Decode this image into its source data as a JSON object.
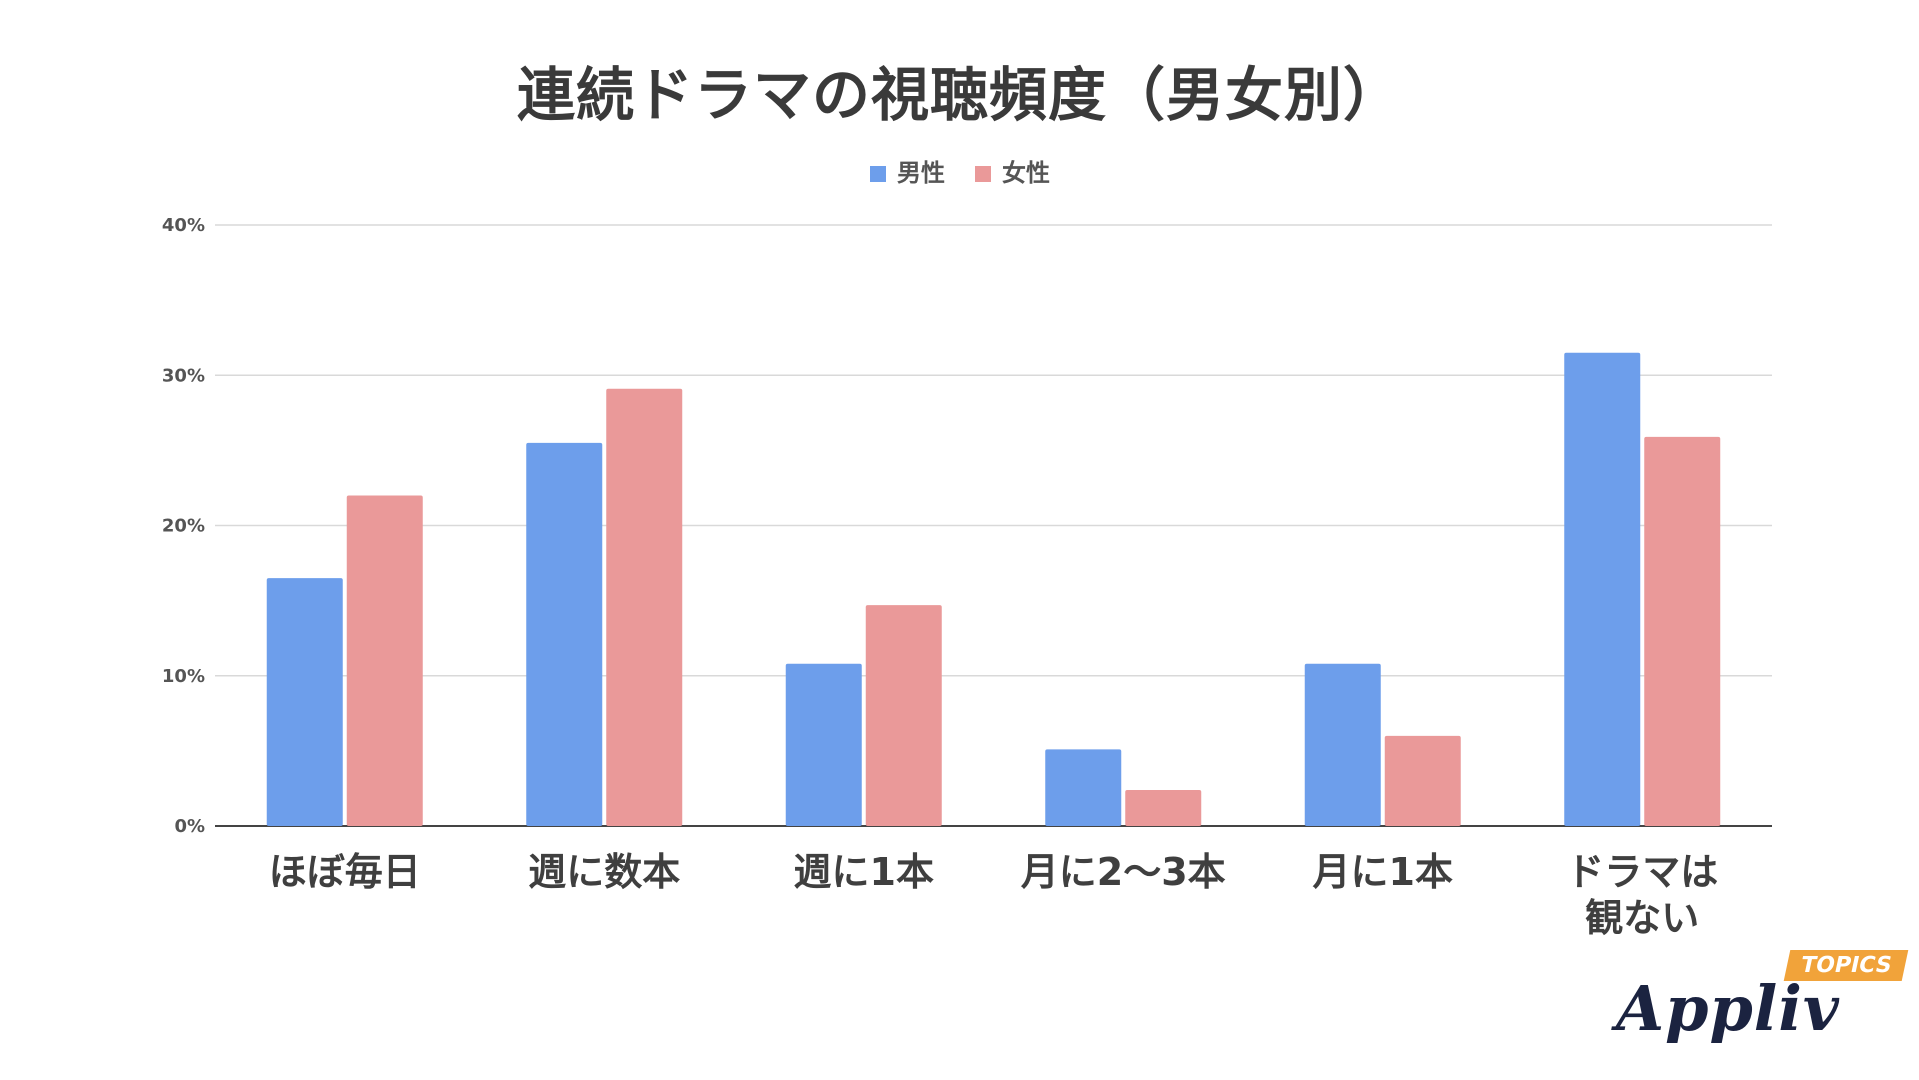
{
  "chart_data": {
    "type": "bar",
    "title": "連続ドラマの視聴頻度（男女別）",
    "categories": [
      "ほぼ毎日",
      "週に数本",
      "週に1本",
      "月に2〜3本",
      "月に1本",
      "ドラマは\n観ない"
    ],
    "series": [
      {
        "name": "男性",
        "color": "#6d9eeb",
        "values": [
          16.5,
          25.5,
          10.8,
          5.1,
          10.8,
          31.5
        ]
      },
      {
        "name": "女性",
        "color": "#ea9999",
        "values": [
          22.0,
          29.1,
          14.7,
          2.4,
          6.0,
          25.9
        ]
      }
    ],
    "yticks": [
      "0%",
      "10%",
      "20%",
      "30%",
      "40%"
    ],
    "ylim": [
      0,
      40
    ],
    "grid": true,
    "legend": "top-center",
    "xlabel": "",
    "ylabel": ""
  },
  "logo": {
    "word": "Appliv",
    "badge": "TOPICS"
  }
}
